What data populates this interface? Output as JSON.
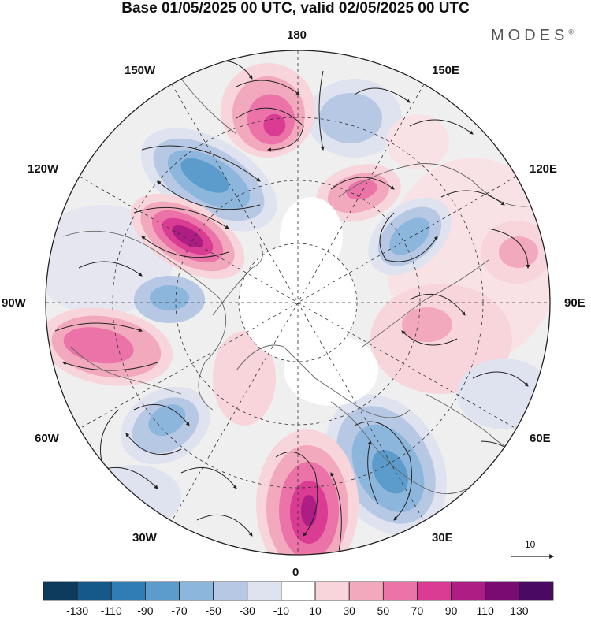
{
  "title": "Base 01/05/2025 00 UTC, valid 02/05/2025 00 UTC",
  "brand": "MODES",
  "brand_mark": "®",
  "longitudes": {
    "n180": "180",
    "w150": "150W",
    "e150": "150E",
    "w120": "120W",
    "e120": "120E",
    "w90": "90W",
    "e90": "90E",
    "w60": "60W",
    "e60": "60E",
    "w30": "30W",
    "e30": "30E",
    "s0": "0"
  },
  "reference_vector": {
    "label": "10",
    "magnitude": 10
  },
  "colorbar": {
    "labels": [
      "-130",
      "-110",
      "-90",
      "-70",
      "-50",
      "-30",
      "-10",
      "10",
      "30",
      "50",
      "70",
      "90",
      "110",
      "130"
    ],
    "colors": [
      "#0d3b5e",
      "#15598a",
      "#2f7db3",
      "#5b9ccc",
      "#8db6dc",
      "#b7c8e4",
      "#dfe2ef",
      "#ffffff",
      "#f7d5da",
      "#f2a9bd",
      "#eb73a7",
      "#d93c92",
      "#ad1d84",
      "#7a0b73",
      "#4a0a63"
    ]
  },
  "anomaly_colors": {
    "land_gray": "#ececec",
    "coast": "#666666"
  }
}
